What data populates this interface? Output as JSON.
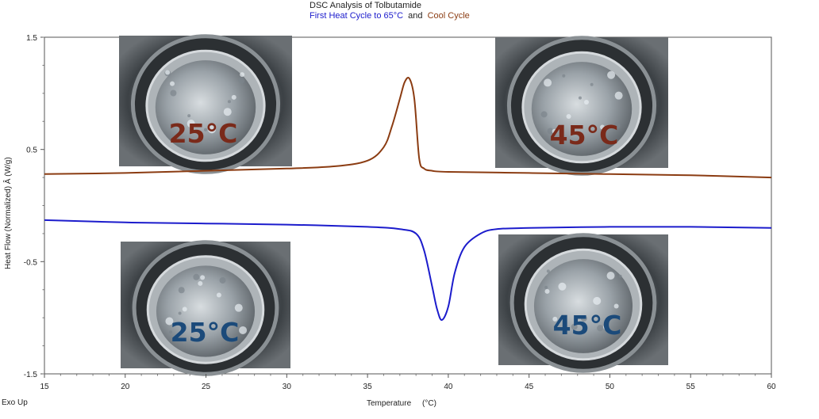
{
  "chart_data": {
    "type": "line",
    "title": "DSC Analysis of Tolbutamide",
    "subtitle": {
      "heat_text": "First Heat Cycle to 65°C",
      "and_text": "and",
      "cool_text": "Cool Cycle"
    },
    "xlabel": "Temperature     (°C)",
    "ylabel": "Heat Flow (Normalized) Â (W/g)",
    "corner_label": "Exo Up",
    "xlim": [
      15,
      60
    ],
    "ylim": [
      -1.5,
      1.5
    ],
    "x_ticks": [
      "15",
      "20",
      "25",
      "30",
      "35",
      "40",
      "45",
      "50",
      "55",
      "60"
    ],
    "y_ticks": [
      "1.5",
      "0.5",
      "-0.5",
      "-1.5"
    ],
    "grid": false,
    "colors": {
      "heat": "#1c1ccc",
      "cool": "#8b3c12",
      "heat_label": "#1b4a7a",
      "cool_label": "#7a2a1a"
    },
    "series": [
      {
        "key": "cool",
        "x": [
          15,
          20,
          25,
          30,
          33,
          35,
          36,
          36.5,
          37,
          37.3,
          37.6,
          37.9,
          38.2,
          38.5,
          39,
          40,
          45,
          50,
          55,
          60
        ],
        "y": [
          0.28,
          0.29,
          0.31,
          0.33,
          0.35,
          0.4,
          0.52,
          0.7,
          0.95,
          1.1,
          1.13,
          0.95,
          0.42,
          0.33,
          0.31,
          0.3,
          0.29,
          0.28,
          0.27,
          0.25
        ]
      },
      {
        "key": "heat",
        "x": [
          15,
          20,
          25,
          30,
          35,
          37,
          38,
          38.5,
          39,
          39.3,
          39.6,
          40,
          40.4,
          41,
          42,
          43,
          45,
          50,
          55,
          60
        ],
        "y": [
          -0.13,
          -0.15,
          -0.16,
          -0.17,
          -0.19,
          -0.21,
          -0.25,
          -0.4,
          -0.72,
          -0.92,
          -1.02,
          -0.9,
          -0.6,
          -0.37,
          -0.25,
          -0.21,
          -0.2,
          -0.19,
          -0.19,
          -0.2
        ]
      }
    ],
    "annotations": [
      {
        "series": "cool",
        "text": "25°C"
      },
      {
        "series": "cool",
        "text": "45°C"
      },
      {
        "series": "heat",
        "text": "25°C"
      },
      {
        "series": "heat",
        "text": "45°C"
      }
    ]
  }
}
